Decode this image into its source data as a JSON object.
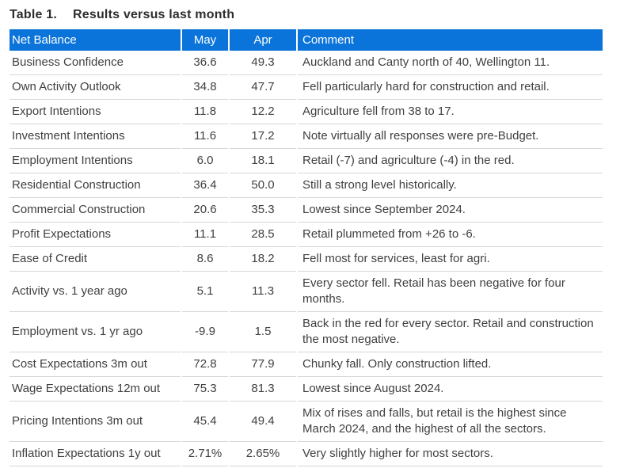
{
  "title": {
    "label": "Table 1.",
    "text": "Results versus last month"
  },
  "colors": {
    "header_bg": "#0b74da",
    "header_text": "#ffffff",
    "body_text": "#404040",
    "row_border": "#d9d6d6",
    "title_text": "#2d2d2d"
  },
  "table": {
    "columns": {
      "name": "Net Balance",
      "may": "May",
      "apr": "Apr",
      "comment": "Comment"
    },
    "rows": [
      {
        "name": "Business Confidence",
        "may": "36.6",
        "apr": "49.3",
        "comment": "Auckland and Canty north of 40, Wellington 11."
      },
      {
        "name": "Own Activity Outlook",
        "may": "34.8",
        "apr": "47.7",
        "comment": "Fell particularly hard for construction and retail."
      },
      {
        "name": "Export Intentions",
        "may": "11.8",
        "apr": "12.2",
        "comment": "Agriculture fell from 38 to 17."
      },
      {
        "name": "Investment Intentions",
        "may": "11.6",
        "apr": "17.2",
        "comment": "Note virtually all responses were pre-Budget."
      },
      {
        "name": "Employment Intentions",
        "may": "6.0",
        "apr": "18.1",
        "comment": "Retail (-7) and agriculture (-4) in the red."
      },
      {
        "name": "Residential Construction",
        "may": "36.4",
        "apr": "50.0",
        "comment": "Still a strong level historically."
      },
      {
        "name": "Commercial Construction",
        "may": "20.6",
        "apr": "35.3",
        "comment": "Lowest since September 2024."
      },
      {
        "name": "Profit Expectations",
        "may": "11.1",
        "apr": "28.5",
        "comment": "Retail plummeted from +26 to -6."
      },
      {
        "name": "Ease of Credit",
        "may": "8.6",
        "apr": "18.2",
        "comment": "Fell most for services, least for agri."
      },
      {
        "name": "Activity vs. 1 year ago",
        "may": "5.1",
        "apr": "11.3",
        "comment": "Every sector fell. Retail has been negative for four months."
      },
      {
        "name": "Employment vs. 1 yr ago",
        "may": "-9.9",
        "apr": "1.5",
        "comment": "Back in the red for every sector. Retail and construction the most negative."
      },
      {
        "name": "Cost Expectations 3m out",
        "may": "72.8",
        "apr": "77.9",
        "comment": "Chunky fall. Only construction lifted."
      },
      {
        "name": "Wage Expectations 12m out",
        "may": "75.3",
        "apr": "81.3",
        "comment": "Lowest since August 2024."
      },
      {
        "name": "Pricing Intentions 3m out",
        "may": "45.4",
        "apr": "49.4",
        "comment": "Mix of rises and falls, but retail is the highest since March 2024, and the highest of all the sectors."
      },
      {
        "name": "Inflation Expectations 1y out",
        "may": "2.71%",
        "apr": "2.65%",
        "comment": "Very slightly higher for most sectors."
      }
    ]
  }
}
